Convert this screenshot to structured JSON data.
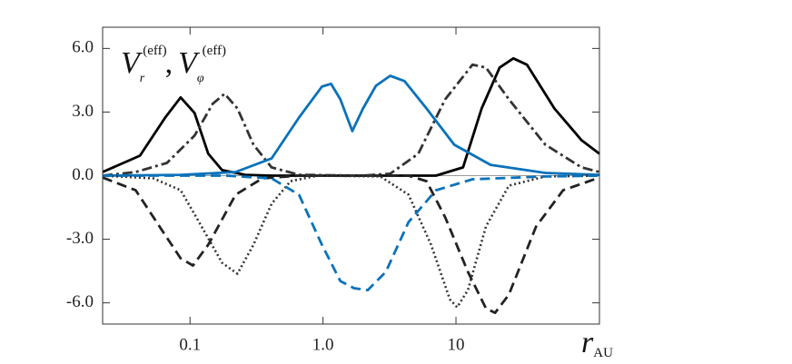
{
  "chart_data": {
    "type": "line",
    "x_scale": "log",
    "xlim": [
      0.022,
      120
    ],
    "ylim": [
      -7,
      7
    ],
    "xticks": [
      0.1,
      {
        "value": 1,
        "label": "1.0"
      },
      10
    ],
    "yticks": [
      {
        "value": 6,
        "label": "6.0"
      },
      {
        "value": 3,
        "label": "3.0"
      },
      {
        "value": 0,
        "label": "0.0"
      },
      {
        "value": -3,
        "label": "-3.0"
      },
      {
        "value": -6,
        "label": "-6.0"
      }
    ],
    "zero_line": true,
    "y_label": [
      "V",
      "r",
      "(eff)",
      ",",
      "V",
      "φ",
      "(eff)"
    ],
    "x_label": [
      "r",
      "AU"
    ],
    "series": [
      {
        "color": "#000000",
        "dash": "solid",
        "x": [
          0.022,
          0.042,
          0.065,
          0.085,
          0.108,
          0.137,
          0.174,
          0.26,
          0.41,
          7.07,
          11.3,
          15.6,
          21.3,
          27,
          34.2,
          55,
          88,
          120
        ],
        "values": [
          0.17,
          0.94,
          2.74,
          3.69,
          2.96,
          1.03,
          0.26,
          0.04,
          0,
          0,
          0.39,
          3.17,
          5.1,
          5.53,
          5.23,
          3.17,
          1.67,
          1.03
        ]
      },
      {
        "color": "#333333",
        "dash": "dashdot",
        "x": [
          0.022,
          0.039,
          0.067,
          0.108,
          0.148,
          0.182,
          0.227,
          0.3,
          0.41,
          0.66,
          2.0,
          3.2,
          5.2,
          8.3,
          13.3,
          16.8,
          25,
          47,
          88,
          120
        ],
        "values": [
          0,
          0.17,
          0.6,
          1.89,
          3.39,
          3.86,
          3.17,
          1.46,
          0.39,
          0.04,
          0,
          0.09,
          1.03,
          3.6,
          5.23,
          5.1,
          3.6,
          1.46,
          0.39,
          0.17
        ]
      },
      {
        "color": "#0a72ba",
        "dash": "solid",
        "x": [
          0.022,
          0.085,
          0.22,
          0.41,
          0.66,
          0.98,
          1.15,
          1.35,
          1.66,
          2.0,
          2.5,
          3.2,
          4.1,
          6.0,
          9.7,
          18.2,
          47,
          120
        ],
        "values": [
          0,
          0.04,
          0.17,
          0.81,
          2.74,
          4.2,
          4.33,
          3.6,
          2.1,
          3.17,
          4.24,
          4.71,
          4.46,
          3.17,
          1.46,
          0.51,
          0.13,
          0.04
        ]
      },
      {
        "color": "#222222",
        "dash": "dashed",
        "x": [
          0.022,
          0.039,
          0.062,
          0.085,
          0.105,
          0.137,
          0.22,
          0.35,
          0.66,
          4.4,
          6.0,
          8.3,
          12.3,
          16.8,
          19.7,
          25,
          40,
          64,
          120
        ],
        "values": [
          -0.09,
          -0.69,
          -2.61,
          -3.9,
          -4.24,
          -3.26,
          -0.9,
          -0.13,
          0,
          0,
          -0.26,
          -1.97,
          -4.54,
          -6.26,
          -6.47,
          -5.61,
          -2.4,
          -0.69,
          -0.09
        ]
      },
      {
        "color": "#333333",
        "dash": "dotted",
        "x": [
          0.022,
          0.053,
          0.085,
          0.117,
          0.174,
          0.227,
          0.3,
          0.41,
          0.57,
          0.91,
          2.7,
          4.4,
          6.5,
          9.0,
          10.2,
          12.3,
          16.8,
          25,
          47,
          120
        ],
        "values": [
          0,
          -0.13,
          -0.69,
          -2.19,
          -4.11,
          -4.63,
          -3.26,
          -1.33,
          -0.26,
          0,
          -0.04,
          -0.9,
          -3.26,
          -5.83,
          -6.21,
          -5.4,
          -2.4,
          -0.47,
          -0.04,
          0
        ]
      },
      {
        "color": "#0a72ba",
        "dash": "dashed",
        "x": [
          0.022,
          0.188,
          0.41,
          0.66,
          0.98,
          1.35,
          1.71,
          2.17,
          2.97,
          4.4,
          7.07,
          13.3,
          47,
          120
        ],
        "values": [
          0,
          0,
          -0.13,
          -0.9,
          -3.26,
          -4.97,
          -5.31,
          -5.4,
          -4.54,
          -2.19,
          -0.69,
          -0.17,
          -0.04,
          0
        ]
      }
    ]
  }
}
